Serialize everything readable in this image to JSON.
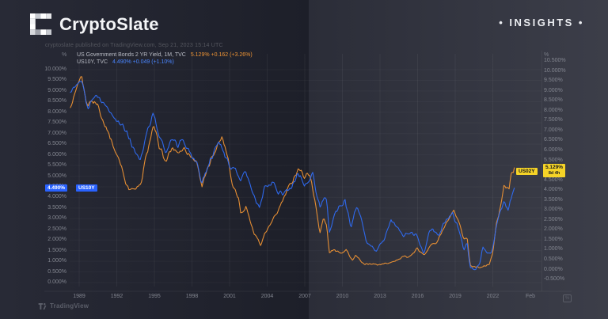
{
  "header": {
    "brand": "CryptoSlate",
    "badge": "• INSIGHTS •"
  },
  "attribution": "cryptoslate published on TradingView.com, Sep 21, 2023 15:14 UTC",
  "legend": {
    "series1_name": "US Government Bonds 2 YR Yield, 1M, TVC",
    "series1_values": "5.129% +0.162 (+3.26%)",
    "series2_name": "US10Y, TVC",
    "series2_values": "4.490% +0.049 (+1.10%)"
  },
  "tags": {
    "left_price": "4.490%",
    "left_symbol": "US10Y",
    "right_symbol": "US02Y",
    "right_price": "5.129%",
    "right_countdown": "8d 4h"
  },
  "axes": {
    "left_unit": "%",
    "right_unit": "%",
    "left_labels": [
      "10.000%",
      "9.500%",
      "9.000%",
      "8.500%",
      "8.000%",
      "7.500%",
      "7.000%",
      "6.500%",
      "6.000%",
      "5.500%",
      "5.000%",
      "4.500%",
      "4.000%",
      "3.500%",
      "3.000%",
      "2.500%",
      "2.000%",
      "1.500%",
      "1.000%",
      "0.500%",
      "0.000%"
    ],
    "right_labels": [
      "10.500%",
      "10.000%",
      "9.500%",
      "9.000%",
      "8.500%",
      "8.000%",
      "7.500%",
      "7.000%",
      "6.500%",
      "6.000%",
      "5.500%",
      "5.000%",
      "4.500%",
      "4.000%",
      "3.500%",
      "3.000%",
      "2.500%",
      "2.000%",
      "1.500%",
      "1.000%",
      "0.500%",
      "0.000%",
      "-0.500%"
    ],
    "x_labels": [
      "1989",
      "1992",
      "1995",
      "1998",
      "2001",
      "2004",
      "2007",
      "2010",
      "2013",
      "2016",
      "2019",
      "2022"
    ],
    "x_last_label": "Feb"
  },
  "footer": {
    "tradingview": "TradingView"
  },
  "colors": {
    "us02y_line": "#ef9434",
    "us10y_line": "#2f6df6",
    "tag_yellow_bg": "#f5d327",
    "tag_blue_bg": "#2962ff",
    "axis_text": "#82858f"
  },
  "chart_data": {
    "type": "line",
    "title": "US Government Bonds 2 YR Yield (US02Y) vs US 10 YR Yield (US10Y), monthly",
    "x_unit": "year",
    "x_range": [
      1988.3,
      2023.75
    ],
    "left_axis": {
      "unit": "%",
      "min": 0,
      "max": 10,
      "step": 0.5,
      "series": "US10Y"
    },
    "right_axis": {
      "unit": "%",
      "min": -0.5,
      "max": 10.5,
      "step": 0.5,
      "series": "US02Y"
    },
    "x_tick_years": [
      1989,
      1992,
      1995,
      1998,
      2001,
      2004,
      2007,
      2010,
      2013,
      2016,
      2019,
      2022
    ],
    "grid": true,
    "legend_position": "top-left",
    "last_values": {
      "US02Y": 5.129,
      "US10Y": 4.49
    },
    "series": [
      {
        "name": "US02Y — US Government Bonds 2 YR Yield",
        "color": "#ef9434",
        "scale": "right",
        "points": [
          [
            1988.3,
            8.1
          ],
          [
            1988.7,
            8.9
          ],
          [
            1989.2,
            9.7
          ],
          [
            1989.6,
            8.3
          ],
          [
            1990.0,
            8.5
          ],
          [
            1990.5,
            8.3
          ],
          [
            1990.9,
            7.5
          ],
          [
            1991.4,
            6.8
          ],
          [
            1991.9,
            5.9
          ],
          [
            1992.4,
            5.2
          ],
          [
            1992.8,
            4.2
          ],
          [
            1993.3,
            4.0
          ],
          [
            1993.9,
            4.2
          ],
          [
            1994.4,
            5.9
          ],
          [
            1994.95,
            7.2
          ],
          [
            1995.4,
            6.2
          ],
          [
            1995.9,
            5.4
          ],
          [
            1996.4,
            6.1
          ],
          [
            1996.9,
            5.9
          ],
          [
            1997.4,
            6.1
          ],
          [
            1997.9,
            5.7
          ],
          [
            1998.4,
            5.4
          ],
          [
            1998.8,
            4.2
          ],
          [
            1999.4,
            5.3
          ],
          [
            1999.9,
            6.1
          ],
          [
            2000.4,
            6.7
          ],
          [
            2000.9,
            5.6
          ],
          [
            2001.2,
            4.3
          ],
          [
            2001.7,
            3.7
          ],
          [
            2001.9,
            2.8
          ],
          [
            2002.3,
            3.2
          ],
          [
            2002.9,
            1.9
          ],
          [
            2003.5,
            1.25
          ],
          [
            2003.8,
            1.8
          ],
          [
            2004.4,
            2.4
          ],
          [
            2004.9,
            3.0
          ],
          [
            2005.4,
            3.7
          ],
          [
            2005.9,
            4.35
          ],
          [
            2006.5,
            5.1
          ],
          [
            2006.9,
            4.7
          ],
          [
            2007.4,
            4.85
          ],
          [
            2007.6,
            4.1
          ],
          [
            2007.9,
            3.2
          ],
          [
            2008.2,
            1.8
          ],
          [
            2008.5,
            2.6
          ],
          [
            2008.75,
            2.2
          ],
          [
            2008.95,
            0.85
          ],
          [
            2009.4,
            1.0
          ],
          [
            2009.9,
            0.85
          ],
          [
            2010.3,
            1.0
          ],
          [
            2010.8,
            0.45
          ],
          [
            2011.1,
            0.7
          ],
          [
            2011.6,
            0.3
          ],
          [
            2012.2,
            0.28
          ],
          [
            2012.9,
            0.25
          ],
          [
            2013.5,
            0.3
          ],
          [
            2013.95,
            0.4
          ],
          [
            2014.5,
            0.5
          ],
          [
            2014.95,
            0.65
          ],
          [
            2015.5,
            0.7
          ],
          [
            2015.95,
            1.05
          ],
          [
            2016.5,
            0.7
          ],
          [
            2016.95,
            1.2
          ],
          [
            2017.5,
            1.35
          ],
          [
            2017.95,
            1.9
          ],
          [
            2018.5,
            2.55
          ],
          [
            2018.9,
            2.9
          ],
          [
            2019.3,
            2.3
          ],
          [
            2019.7,
            1.55
          ],
          [
            2019.95,
            1.6
          ],
          [
            2020.2,
            0.2
          ],
          [
            2020.6,
            0.15
          ],
          [
            2020.95,
            0.12
          ],
          [
            2021.3,
            0.15
          ],
          [
            2021.7,
            0.25
          ],
          [
            2021.95,
            0.7
          ],
          [
            2022.3,
            2.3
          ],
          [
            2022.6,
            3.1
          ],
          [
            2022.9,
            4.4
          ],
          [
            2023.1,
            4.05
          ],
          [
            2023.3,
            4.1
          ],
          [
            2023.5,
            4.85
          ],
          [
            2023.72,
            5.13
          ]
        ]
      },
      {
        "name": "US10Y — US Government Bonds 10 YR Yield",
        "color": "#2f6df6",
        "scale": "left",
        "points": [
          [
            1988.3,
            9.0
          ],
          [
            1988.7,
            9.15
          ],
          [
            1989.2,
            9.5
          ],
          [
            1989.7,
            8.2
          ],
          [
            1990.0,
            8.5
          ],
          [
            1990.4,
            8.85
          ],
          [
            1990.9,
            8.4
          ],
          [
            1991.4,
            8.15
          ],
          [
            1991.9,
            7.6
          ],
          [
            1992.4,
            7.5
          ],
          [
            1992.9,
            6.9
          ],
          [
            1993.4,
            6.2
          ],
          [
            1993.9,
            5.8
          ],
          [
            1994.4,
            7.1
          ],
          [
            1994.9,
            7.95
          ],
          [
            1995.4,
            6.9
          ],
          [
            1995.9,
            6.1
          ],
          [
            1996.4,
            6.85
          ],
          [
            1996.9,
            6.45
          ],
          [
            1997.3,
            6.75
          ],
          [
            1997.9,
            6.0
          ],
          [
            1998.4,
            5.6
          ],
          [
            1998.8,
            4.7
          ],
          [
            1999.4,
            5.6
          ],
          [
            1999.9,
            6.3
          ],
          [
            2000.1,
            6.65
          ],
          [
            2000.6,
            6.05
          ],
          [
            2000.9,
            5.6
          ],
          [
            2001.4,
            5.3
          ],
          [
            2001.9,
            4.85
          ],
          [
            2002.3,
            5.2
          ],
          [
            2002.9,
            4.05
          ],
          [
            2003.4,
            3.45
          ],
          [
            2003.7,
            4.35
          ],
          [
            2004.4,
            4.7
          ],
          [
            2004.9,
            4.2
          ],
          [
            2005.4,
            4.15
          ],
          [
            2005.9,
            4.5
          ],
          [
            2006.5,
            5.15
          ],
          [
            2006.9,
            4.65
          ],
          [
            2007.4,
            4.75
          ],
          [
            2007.6,
            5.15
          ],
          [
            2007.9,
            4.3
          ],
          [
            2008.2,
            3.55
          ],
          [
            2008.5,
            4.0
          ],
          [
            2008.75,
            3.8
          ],
          [
            2008.95,
            2.25
          ],
          [
            2009.4,
            3.3
          ],
          [
            2009.9,
            3.6
          ],
          [
            2010.2,
            3.9
          ],
          [
            2010.7,
            2.55
          ],
          [
            2010.95,
            3.3
          ],
          [
            2011.1,
            3.55
          ],
          [
            2011.5,
            3.0
          ],
          [
            2011.9,
            1.95
          ],
          [
            2012.4,
            1.65
          ],
          [
            2012.7,
            1.5
          ],
          [
            2012.95,
            1.75
          ],
          [
            2013.3,
            1.95
          ],
          [
            2013.9,
            2.95
          ],
          [
            2014.4,
            2.6
          ],
          [
            2014.9,
            2.2
          ],
          [
            2015.4,
            2.35
          ],
          [
            2015.9,
            2.2
          ],
          [
            2016.5,
            1.4
          ],
          [
            2016.95,
            2.4
          ],
          [
            2017.2,
            2.5
          ],
          [
            2017.7,
            2.15
          ],
          [
            2018.1,
            2.85
          ],
          [
            2018.8,
            3.2
          ],
          [
            2019.3,
            2.5
          ],
          [
            2019.7,
            1.55
          ],
          [
            2019.95,
            1.9
          ],
          [
            2020.2,
            0.65
          ],
          [
            2020.6,
            0.65
          ],
          [
            2020.95,
            0.9
          ],
          [
            2021.2,
            1.7
          ],
          [
            2021.6,
            1.3
          ],
          [
            2021.95,
            1.5
          ],
          [
            2022.4,
            3.0
          ],
          [
            2022.75,
            3.5
          ],
          [
            2022.95,
            3.85
          ],
          [
            2023.2,
            3.4
          ],
          [
            2023.4,
            3.8
          ],
          [
            2023.72,
            4.49
          ]
        ]
      }
    ]
  }
}
